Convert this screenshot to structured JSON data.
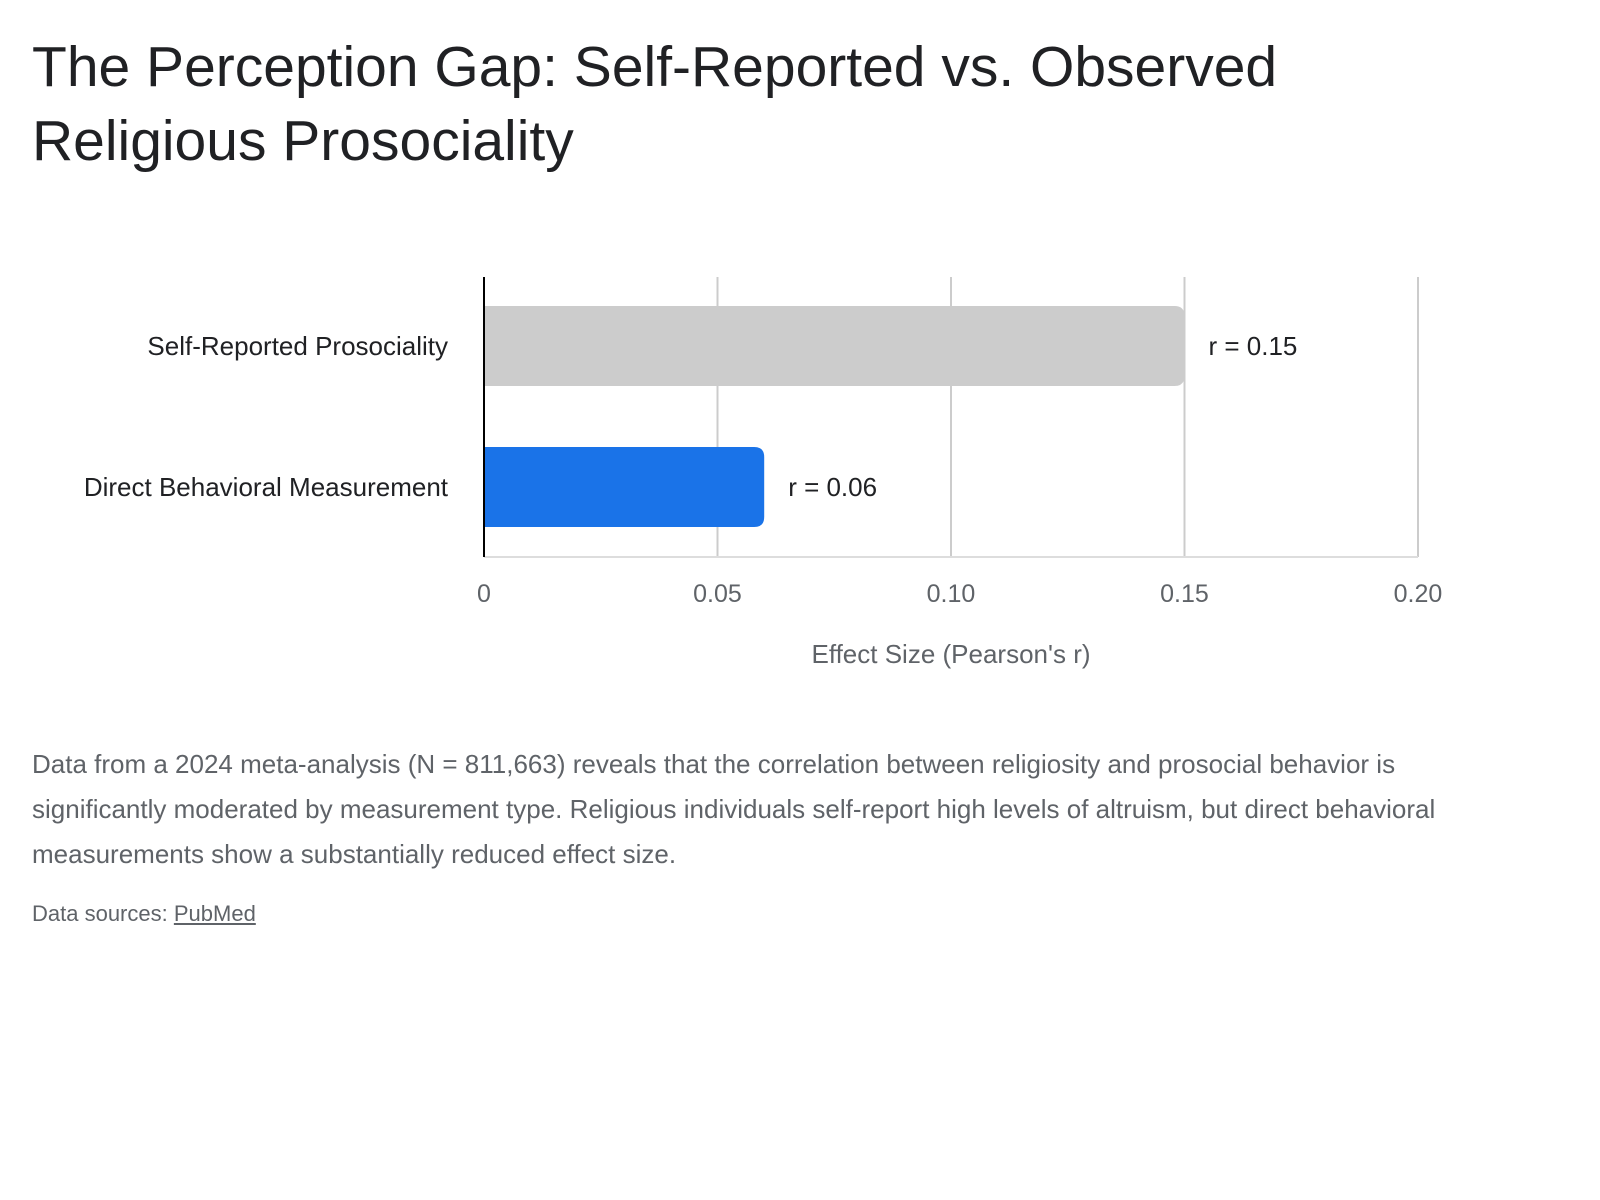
{
  "page": {
    "title": "The Perception Gap: Self-Reported vs. Observed Religious Prosociality",
    "description": "Data from a 2024 meta-analysis (N = 811,663) reveals that the correlation between religiosity and prosocial behavior is significantly moderated by measurement type. Religious individuals self-report high levels of altruism, but direct behavioral measurements show a substantially reduced effect size.",
    "sources_label": "Data sources:",
    "source_link": "PubMed"
  },
  "chart_data": {
    "type": "bar",
    "orientation": "horizontal",
    "categories": [
      "Self-Reported Prosociality",
      "Direct Behavioral Measurement"
    ],
    "values": [
      0.15,
      0.06
    ],
    "data_labels": [
      "r = 0.15",
      "r = 0.06"
    ],
    "colors": [
      "#cccccc",
      "#1a73e8"
    ],
    "xlabel": "Effect Size (Pearson's r)",
    "xlim": [
      0,
      0.2
    ],
    "x_ticks": [
      0,
      0.05,
      0.1,
      0.15,
      0.2
    ],
    "x_tick_labels": [
      "0",
      "0.05",
      "0.10",
      "0.15",
      "0.20"
    ],
    "grid": true,
    "legend": "none"
  }
}
